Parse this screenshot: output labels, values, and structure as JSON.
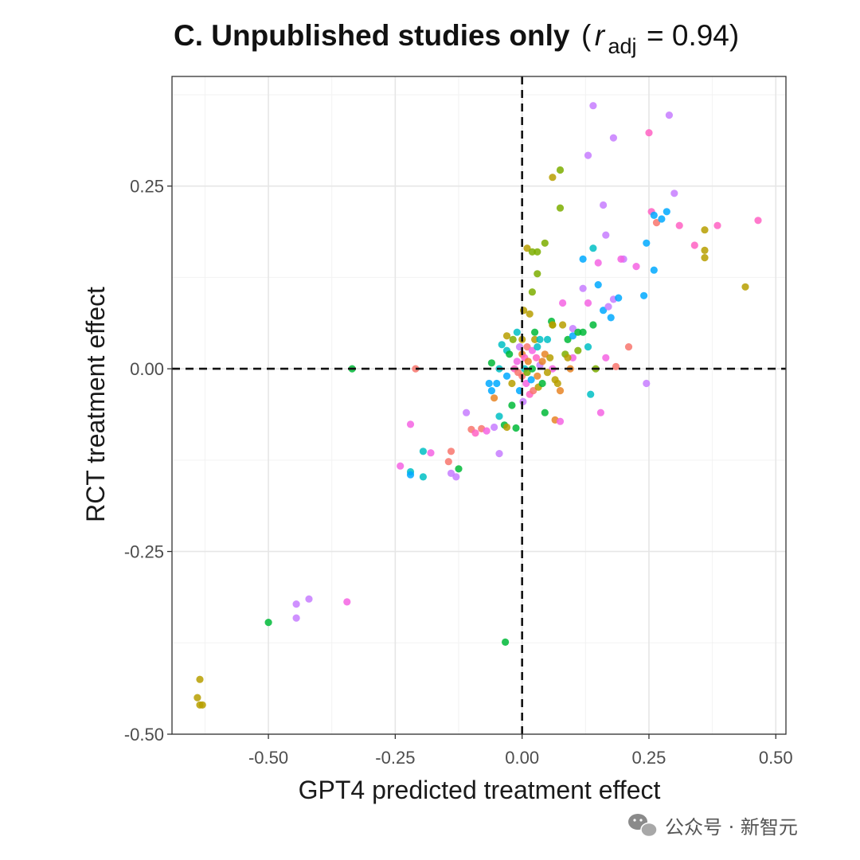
{
  "chart_data": {
    "type": "scatter",
    "title": {
      "main": "C. Unpublished studies only",
      "open_paren": "(",
      "r": "r",
      "sub": "adj",
      "equals": "= 0.94)"
    },
    "xlabel": "GPT4 predicted treatment effect",
    "ylabel": "RCT treatment effect",
    "xlim": [
      -0.69,
      0.52
    ],
    "ylim": [
      -0.5,
      0.4
    ],
    "xticks": [
      -0.5,
      -0.25,
      0.0,
      0.25,
      0.5
    ],
    "xtick_labels": [
      "-0.50",
      "-0.25",
      "0.00",
      "0.25",
      "0.50"
    ],
    "yticks": [
      -0.5,
      -0.25,
      0.0,
      0.25
    ],
    "ytick_labels": [
      "-0.50",
      "-0.25",
      "0.00",
      "0.25"
    ],
    "grid": true,
    "reference_lines": {
      "x": 0,
      "y": 0,
      "style": "dashed"
    },
    "colors": [
      "#f8766d",
      "#e88526",
      "#b79f00",
      "#7cae00",
      "#00ba38",
      "#00bfc4",
      "#00a9ff",
      "#c77cff",
      "#f564e3",
      "#ff61c3"
    ],
    "points": [
      [
        -0.635,
        -0.425,
        2
      ],
      [
        -0.64,
        -0.45,
        2
      ],
      [
        -0.635,
        -0.46,
        2
      ],
      [
        -0.63,
        -0.46,
        2
      ],
      [
        -0.5,
        -0.347,
        4
      ],
      [
        -0.445,
        -0.322,
        7
      ],
      [
        -0.445,
        -0.341,
        7
      ],
      [
        -0.42,
        -0.315,
        7
      ],
      [
        -0.345,
        -0.319,
        8
      ],
      [
        -0.033,
        -0.374,
        4
      ],
      [
        -0.335,
        0.0,
        4
      ],
      [
        -0.21,
        0.0,
        0
      ],
      [
        -0.24,
        -0.133,
        8
      ],
      [
        -0.22,
        -0.141,
        5
      ],
      [
        -0.22,
        -0.145,
        6
      ],
      [
        -0.22,
        -0.076,
        8
      ],
      [
        -0.195,
        -0.113,
        5
      ],
      [
        -0.195,
        -0.148,
        5
      ],
      [
        -0.18,
        -0.115,
        8
      ],
      [
        -0.14,
        -0.113,
        0
      ],
      [
        -0.145,
        -0.127,
        0
      ],
      [
        -0.14,
        -0.143,
        7
      ],
      [
        -0.13,
        -0.148,
        7
      ],
      [
        -0.125,
        -0.137,
        4
      ],
      [
        -0.11,
        -0.06,
        7
      ],
      [
        -0.1,
        -0.083,
        0
      ],
      [
        -0.092,
        -0.088,
        9
      ],
      [
        -0.08,
        -0.082,
        0
      ],
      [
        -0.07,
        -0.085,
        8
      ],
      [
        -0.055,
        -0.08,
        7
      ],
      [
        -0.045,
        -0.116,
        7
      ],
      [
        -0.045,
        -0.065,
        5
      ],
      [
        -0.035,
        -0.077,
        4
      ],
      [
        -0.03,
        -0.08,
        2
      ],
      [
        -0.012,
        -0.081,
        4
      ],
      [
        -0.06,
        -0.03,
        6
      ],
      [
        -0.065,
        -0.02,
        6
      ],
      [
        -0.045,
        0.0,
        5
      ],
      [
        -0.04,
        0.033,
        5
      ],
      [
        -0.03,
        0.025,
        5
      ],
      [
        -0.03,
        -0.01,
        6
      ],
      [
        -0.025,
        0.02,
        4
      ],
      [
        -0.018,
        0.04,
        3
      ],
      [
        -0.02,
        -0.02,
        2
      ],
      [
        -0.015,
        0.0,
        9
      ],
      [
        -0.01,
        0.05,
        5
      ],
      [
        -0.01,
        0.01,
        8
      ],
      [
        -0.008,
        -0.005,
        0
      ],
      [
        -0.005,
        0.03,
        7
      ],
      [
        -0.005,
        -0.03,
        6
      ],
      [
        0.0,
        0.02,
        1
      ],
      [
        0.0,
        -0.01,
        0
      ],
      [
        0.0,
        0.04,
        2
      ],
      [
        0.002,
        -0.045,
        7
      ],
      [
        0.005,
        0.0,
        5
      ],
      [
        0.005,
        0.015,
        9
      ],
      [
        0.008,
        -0.02,
        8
      ],
      [
        0.01,
        0.03,
        0
      ],
      [
        0.01,
        -0.005,
        3
      ],
      [
        0.012,
        0.01,
        1
      ],
      [
        0.015,
        0.075,
        2
      ],
      [
        0.015,
        -0.035,
        9
      ],
      [
        0.018,
        -0.015,
        6
      ],
      [
        0.02,
        0.025,
        8
      ],
      [
        0.02,
        0.0,
        4
      ],
      [
        0.022,
        -0.03,
        0
      ],
      [
        0.025,
        0.05,
        4
      ],
      [
        0.025,
        0.04,
        2
      ],
      [
        0.028,
        0.015,
        9
      ],
      [
        0.03,
        -0.01,
        1
      ],
      [
        0.03,
        0.03,
        5
      ],
      [
        0.032,
        -0.025,
        2
      ],
      [
        0.035,
        0.005,
        7
      ],
      [
        0.04,
        0.01,
        1
      ],
      [
        0.04,
        -0.02,
        4
      ],
      [
        0.045,
        0.02,
        1
      ],
      [
        0.045,
        -0.06,
        4
      ],
      [
        0.05,
        0.04,
        5
      ],
      [
        0.055,
        0.015,
        2
      ],
      [
        0.058,
        0.065,
        4
      ],
      [
        0.06,
        0.06,
        3
      ],
      [
        0.06,
        0.0,
        8
      ],
      [
        0.065,
        -0.07,
        1
      ],
      [
        0.07,
        -0.02,
        2
      ],
      [
        0.075,
        -0.072,
        8
      ],
      [
        0.075,
        -0.03,
        1
      ],
      [
        0.08,
        0.09,
        8
      ],
      [
        0.085,
        0.02,
        3
      ],
      [
        0.09,
        0.04,
        4
      ],
      [
        0.095,
        0.0,
        1
      ],
      [
        0.1,
        0.015,
        8
      ],
      [
        0.1,
        0.045,
        6
      ],
      [
        0.1,
        0.055,
        7
      ],
      [
        0.11,
        0.025,
        3
      ],
      [
        0.12,
        0.05,
        4
      ],
      [
        0.12,
        0.11,
        7
      ],
      [
        0.13,
        0.09,
        8
      ],
      [
        0.13,
        0.03,
        5
      ],
      [
        0.135,
        -0.035,
        5
      ],
      [
        0.14,
        0.06,
        4
      ],
      [
        0.145,
        0.0,
        3
      ],
      [
        0.15,
        0.115,
        6
      ],
      [
        0.155,
        -0.06,
        8
      ],
      [
        0.16,
        0.08,
        6
      ],
      [
        0.165,
        0.015,
        8
      ],
      [
        0.17,
        0.085,
        7
      ],
      [
        0.175,
        0.07,
        6
      ],
      [
        0.18,
        0.095,
        7
      ],
      [
        0.185,
        0.003,
        0
      ],
      [
        0.19,
        0.097,
        6
      ],
      [
        0.2,
        0.15,
        7
      ],
      [
        0.21,
        0.03,
        0
      ],
      [
        0.225,
        0.14,
        8
      ],
      [
        0.24,
        0.1,
        6
      ],
      [
        0.245,
        0.172,
        6
      ],
      [
        0.245,
        -0.02,
        7
      ],
      [
        0.255,
        0.215,
        9
      ],
      [
        0.26,
        0.21,
        6
      ],
      [
        0.26,
        0.135,
        6
      ],
      [
        0.265,
        0.2,
        0
      ],
      [
        0.275,
        0.205,
        6
      ],
      [
        0.285,
        0.215,
        6
      ],
      [
        0.29,
        0.347,
        7
      ],
      [
        0.25,
        0.323,
        9
      ],
      [
        0.18,
        0.316,
        7
      ],
      [
        0.14,
        0.36,
        7
      ],
      [
        0.13,
        0.292,
        7
      ],
      [
        0.16,
        0.224,
        7
      ],
      [
        0.165,
        0.183,
        7
      ],
      [
        0.3,
        0.24,
        7
      ],
      [
        0.31,
        0.196,
        9
      ],
      [
        0.34,
        0.169,
        9
      ],
      [
        0.36,
        0.19,
        2
      ],
      [
        0.36,
        0.162,
        2
      ],
      [
        0.36,
        0.152,
        2
      ],
      [
        0.385,
        0.196,
        9
      ],
      [
        0.44,
        0.112,
        2
      ],
      [
        0.465,
        0.203,
        9
      ],
      [
        0.12,
        0.15,
        6
      ],
      [
        0.14,
        0.165,
        5
      ],
      [
        0.15,
        0.145,
        8
      ],
      [
        0.195,
        0.15,
        8
      ],
      [
        0.06,
        0.262,
        2
      ],
      [
        0.075,
        0.272,
        3
      ],
      [
        0.075,
        0.22,
        3
      ],
      [
        0.045,
        0.172,
        3
      ],
      [
        0.01,
        0.165,
        2
      ],
      [
        0.02,
        0.16,
        3
      ],
      [
        0.03,
        0.16,
        3
      ],
      [
        0.03,
        0.13,
        3
      ],
      [
        0.02,
        0.105,
        3
      ],
      [
        0.003,
        0.08,
        2
      ],
      [
        0.06,
        0.06,
        2
      ],
      [
        0.08,
        0.06,
        2
      ],
      [
        0.11,
        0.05,
        4
      ],
      [
        0.09,
        0.015,
        2
      ],
      [
        0.035,
        0.04,
        5
      ],
      [
        0.05,
        -0.005,
        2
      ],
      [
        0.065,
        -0.015,
        2
      ],
      [
        -0.03,
        0.045,
        2
      ],
      [
        -0.05,
        -0.02,
        6
      ],
      [
        -0.06,
        0.008,
        4
      ],
      [
        -0.055,
        -0.04,
        1
      ],
      [
        -0.02,
        -0.05,
        4
      ]
    ]
  },
  "watermark": {
    "icon": "wechat-icon",
    "text": "公众号 · 新智元"
  }
}
